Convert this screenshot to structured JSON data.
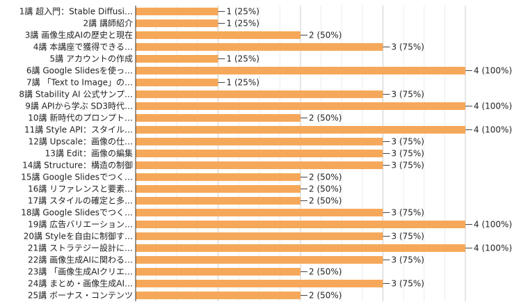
{
  "chart_data": {
    "type": "bar",
    "orientation": "horizontal",
    "categories": [
      "1講 超入門：Stable Diffusi…",
      "2講 講師紹介",
      "3講 画像生成AIの歴史と現在",
      "4講 本講座で獲得できる…",
      "5講 アカウントの作成",
      "6講 Google Slidesを使っ…",
      "7講 「Text to Image」の…",
      "8講 Stability AI 公式サンプ…",
      "9講 APIから学ぶ SD3時代…",
      "10講 新時代のプロンプト…",
      "11講 Style API：スタイル…",
      "12講 Upscale：画像の仕…",
      "13講 Edit：画像の編集",
      "14講 Structure：構造の制御",
      "15講 Google Slidesでつく…",
      "16講 リファレンスと要素…",
      "17講 スタイルの確定と多…",
      "18講 Google Slidesでつく…",
      "19講 広告バリエーション…",
      "20講 Styleを自由に制御す…",
      "21講 ストラテジー設計に…",
      "22講 画像生成AIに関わる…",
      "23講 「画像生成AIクリエ…",
      "24講 まとめ・画像生成AI…",
      "25講 ボーナス・コンテンツ"
    ],
    "values": [
      1,
      1,
      2,
      3,
      1,
      4,
      1,
      3,
      4,
      2,
      4,
      3,
      3,
      3,
      2,
      2,
      2,
      3,
      4,
      3,
      4,
      3,
      2,
      3,
      2
    ],
    "data_labels": [
      "1 (25%)",
      "1 (25%)",
      "2 (50%)",
      "3 (75%)",
      "1 (25%)",
      "4 (100%)",
      "1 (25%)",
      "3 (75%)",
      "4 (100%)",
      "2 (50%)",
      "4 (100%)",
      "3 (75%)",
      "3 (75%)",
      "3 (75%)",
      "2 (50%)",
      "2 (50%)",
      "2 (50%)",
      "3 (75%)",
      "4 (100%)",
      "3 (75%)",
      "4 (100%)",
      "3 (75%)",
      "2 (50%)",
      "3 (75%)",
      "2 (50%)"
    ],
    "xlim": [
      0,
      4
    ],
    "grid": true,
    "bar_color": "#f6a85a",
    "title": "",
    "xlabel": "",
    "ylabel": ""
  }
}
